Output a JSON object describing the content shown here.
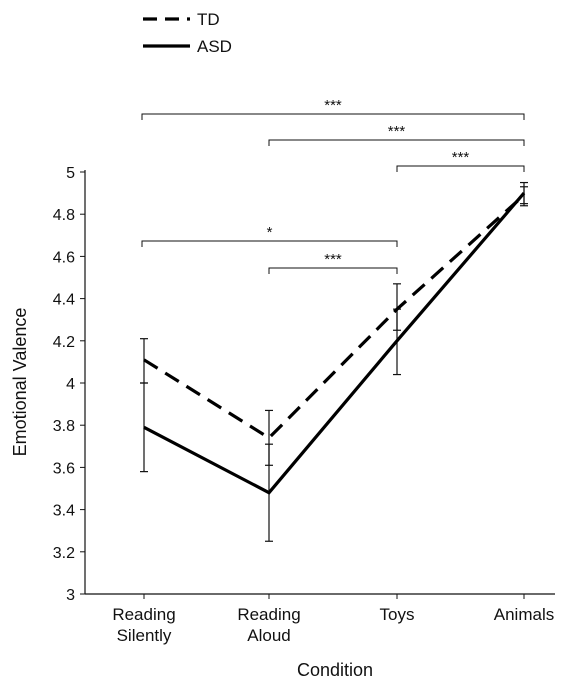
{
  "chart_data": {
    "type": "line",
    "categories": [
      [
        "Reading",
        "Silently"
      ],
      [
        "Reading",
        "Aloud"
      ],
      [
        "Toys"
      ],
      [
        "Animals"
      ]
    ],
    "xlabel": "Condition",
    "ylabel": "Emotional Valence",
    "ylim": [
      3,
      5
    ],
    "yticks": [
      "3",
      "3.2",
      "3.4",
      "3.6",
      "3.8",
      "4",
      "4.2",
      "4.4",
      "4.6",
      "4.8",
      "5"
    ],
    "grid": false,
    "legend_position": "top-left",
    "series": [
      {
        "name": "TD",
        "style": "dashed",
        "color": "#000000",
        "values": [
          4.11,
          3.74,
          4.35,
          4.89
        ],
        "error_low": [
          4.0,
          3.61,
          4.25,
          4.84
        ],
        "error_high": [
          4.21,
          3.87,
          4.47,
          4.93
        ]
      },
      {
        "name": "ASD",
        "style": "solid",
        "color": "#000000",
        "values": [
          3.79,
          3.48,
          4.2,
          4.9
        ],
        "error_low": [
          3.58,
          3.25,
          4.04,
          4.85
        ],
        "error_high": [
          4.0,
          3.71,
          4.35,
          4.95
        ]
      }
    ],
    "annotations": [
      {
        "from": 0,
        "to": 3,
        "label": "***",
        "level": 0
      },
      {
        "from": 1,
        "to": 3,
        "label": "***",
        "level": 1
      },
      {
        "from": 2,
        "to": 3,
        "label": "***",
        "level": 2
      },
      {
        "from": 0,
        "to": 2,
        "label": "*",
        "level": 3
      },
      {
        "from": 1,
        "to": 2,
        "label": "***",
        "level": 4
      }
    ]
  }
}
